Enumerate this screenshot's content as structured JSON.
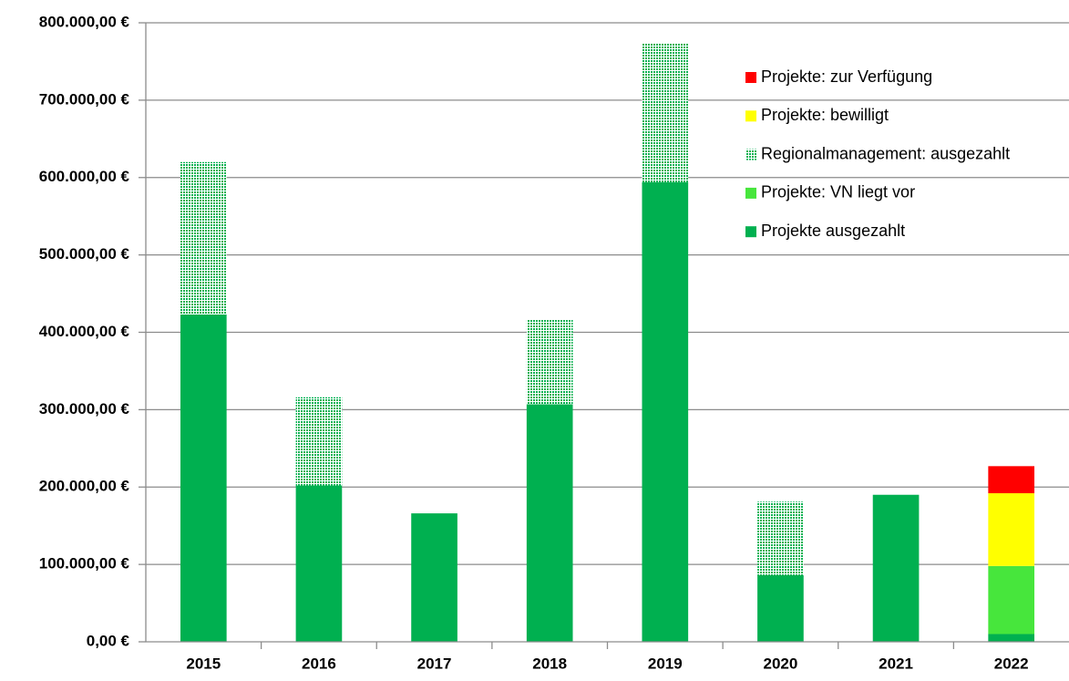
{
  "chart_data": {
    "type": "stacked_bar",
    "categories": [
      "2015",
      "2016",
      "2017",
      "2018",
      "2019",
      "2020",
      "2021",
      "2022"
    ],
    "series": [
      {
        "name": "Projekte ausgezahlt",
        "color": "#00b050",
        "values": [
          423000,
          202000,
          166000,
          307000,
          594000,
          86000,
          190000,
          10000
        ]
      },
      {
        "name": "Projekte: VN liegt vor",
        "color": "#47e63c",
        "values": [
          null,
          null,
          null,
          null,
          null,
          null,
          null,
          88000
        ]
      },
      {
        "name": "Regionalmanagement: ausgezahlt",
        "color": "#00b050",
        "pattern": "dots",
        "values": [
          197000,
          114000,
          null,
          110000,
          179000,
          95000,
          null,
          null
        ]
      },
      {
        "name": "Projekte: bewilligt",
        "color": "#ffff00",
        "values": [
          null,
          null,
          null,
          null,
          null,
          null,
          null,
          94000
        ]
      },
      {
        "name": "Projekte: zur Verfügung",
        "color": "#ff0000",
        "values": [
          null,
          null,
          null,
          null,
          null,
          null,
          null,
          35000
        ]
      }
    ],
    "ylim": [
      0,
      800000
    ],
    "yticks": [
      {
        "value": 0,
        "label": "0,00 €"
      },
      {
        "value": 100000,
        "label": "100.000,00 €"
      },
      {
        "value": 200000,
        "label": "200.000,00 €"
      },
      {
        "value": 300000,
        "label": "300.000,00 €"
      },
      {
        "value": 400000,
        "label": "400.000,00 €"
      },
      {
        "value": 500000,
        "label": "500.000,00 €"
      },
      {
        "value": 600000,
        "label": "600.000,00 €"
      },
      {
        "value": 700000,
        "label": "700.000,00 €"
      },
      {
        "value": 800000,
        "label": "800.000,00 €"
      }
    ],
    "grid": true,
    "legend": "upper right"
  }
}
